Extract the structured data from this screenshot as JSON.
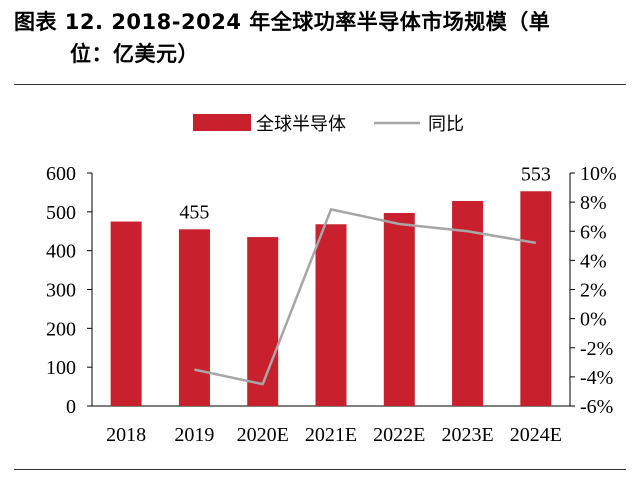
{
  "title_line1": "图表 12. 2018-2024 年全球功率半导体市场规模（单",
  "title_line2": "位：亿美元）",
  "chart_data": {
    "type": "bar",
    "categories": [
      "2018",
      "2019",
      "2020E",
      "2021E",
      "2022E",
      "2023E",
      "2024E"
    ],
    "series": [
      {
        "name": "全球半导体",
        "kind": "bar",
        "axis": "left",
        "values": [
          475,
          455,
          435,
          468,
          497,
          528,
          553
        ],
        "color": "#C8212D"
      },
      {
        "name": "同比",
        "kind": "line",
        "axis": "right",
        "values": [
          null,
          -3.5,
          -4.5,
          7.5,
          6.5,
          6.0,
          5.2
        ],
        "color": "#A6A6A6"
      }
    ],
    "data_labels": [
      {
        "series": 0,
        "index": 1,
        "text": "455"
      },
      {
        "series": 0,
        "index": 6,
        "text": "553"
      }
    ],
    "y_left": {
      "ylim": [
        0,
        600
      ],
      "ticks": [
        "0",
        "100",
        "200",
        "300",
        "400",
        "500",
        "600"
      ]
    },
    "y_right": {
      "ylim": [
        -6,
        10
      ],
      "ticks": [
        "-6%",
        "-4%",
        "-2%",
        "0%",
        "2%",
        "4%",
        "6%",
        "8%",
        "10%"
      ]
    },
    "legend_position": "top-center",
    "grid": false
  }
}
